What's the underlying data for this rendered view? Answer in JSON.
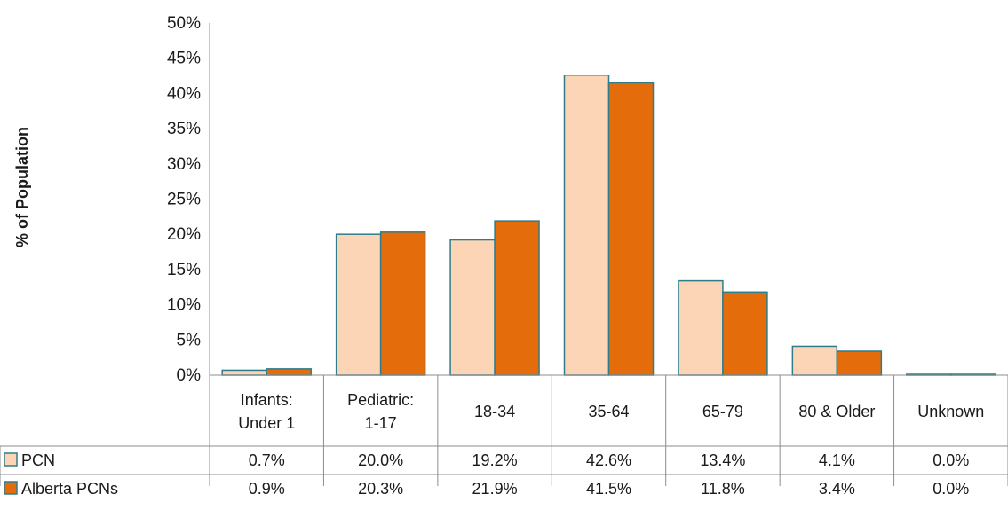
{
  "chart_data": {
    "type": "bar",
    "title": "",
    "ylabel": "% of Population",
    "xlabel": "",
    "ylim": [
      0,
      50
    ],
    "yticks": [
      "0%",
      "5%",
      "10%",
      "15%",
      "20%",
      "25%",
      "30%",
      "35%",
      "40%",
      "45%",
      "50%"
    ],
    "grid": false,
    "legend": "data-table",
    "categories": [
      [
        "Infants:",
        "Under 1"
      ],
      [
        "Pediatric:",
        "1-17"
      ],
      [
        "18-34"
      ],
      [
        "35-64"
      ],
      [
        "65-79"
      ],
      [
        "80 & Older"
      ],
      [
        "Unknown"
      ]
    ],
    "series": [
      {
        "name": "PCN",
        "color": "#fbd5b5",
        "border": "#2e7d8c",
        "values": [
          0.7,
          20.0,
          19.2,
          42.6,
          13.4,
          4.1,
          0.0
        ],
        "labels": [
          "0.7%",
          "20.0%",
          "19.2%",
          "42.6%",
          "13.4%",
          "4.1%",
          "0.0%"
        ]
      },
      {
        "name": "Alberta PCNs",
        "color": "#e46c0a",
        "border": "#2e7d8c",
        "values": [
          0.9,
          20.3,
          21.9,
          41.5,
          11.8,
          3.4,
          0.0
        ],
        "labels": [
          "0.9%",
          "20.3%",
          "21.9%",
          "41.5%",
          "11.8%",
          "3.4%",
          "0.0%"
        ]
      }
    ]
  }
}
